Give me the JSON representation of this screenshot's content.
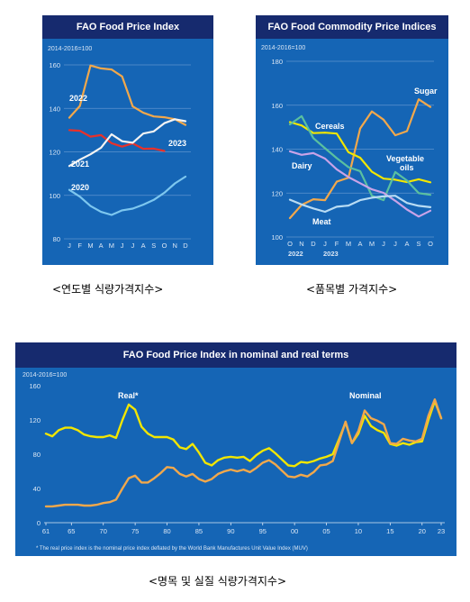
{
  "captions": {
    "annual": "<연도별 식량가격지수>",
    "commodity": "<품목별 가격지수>",
    "nominal_real": "<명목 및 실질 식량가격지수>"
  },
  "colors": {
    "panel_bg": "#1565b5",
    "title_bg": "#162a6e",
    "grid": "#5d95cf",
    "axis_text": "#dbe7f5",
    "label_text": "#ffffff",
    "orange": "#f2a84b",
    "salmon": "#f27d6b",
    "white_line": "#f4f4f4",
    "light_blue": "#7dc7ef",
    "yellow": "#f2e600",
    "teal": "#5ac0a0",
    "violet": "#c9a3e8",
    "pale_blue": "#b8dcf4",
    "red": "#e8312a"
  },
  "chart_data": [
    {
      "type": "line",
      "title": "FAO Food Price Index",
      "unit_label": "2014-2016=100",
      "x_ticks": [
        "J",
        "F",
        "M",
        "A",
        "M",
        "J",
        "J",
        "A",
        "S",
        "O",
        "N",
        "D"
      ],
      "y_ticks": [
        80,
        100,
        120,
        140,
        160
      ],
      "ylim": [
        80,
        160
      ],
      "grid": true,
      "series": [
        {
          "name": "2022",
          "color_key": "orange",
          "values": [
            135.7,
            141.1,
            159.7,
            158.4,
            157.9,
            154.7,
            140.9,
            138.0,
            136.3,
            135.9,
            135.0,
            132.4
          ]
        },
        {
          "name": "2023",
          "color_key": "red",
          "values": [
            130.0,
            129.7,
            127.0,
            127.7,
            124.0,
            122.4,
            123.9,
            121.4,
            121.5,
            120.4
          ]
        },
        {
          "name": "2021",
          "color_key": "white_line",
          "values": [
            113.5,
            116.4,
            118.9,
            121.9,
            128.1,
            124.9,
            124.2,
            128.4,
            129.4,
            133.2,
            135.0,
            134.1
          ]
        },
        {
          "name": "2020",
          "color_key": "light_blue",
          "values": [
            102.5,
            99.4,
            95.1,
            92.4,
            91.0,
            93.1,
            93.9,
            95.7,
            97.9,
            101.2,
            105.5,
            108.6
          ]
        }
      ],
      "series_labels": [
        "2022",
        "2023",
        "2021",
        "2020"
      ]
    },
    {
      "type": "line",
      "title": "FAO Food Commodity Price Indices",
      "unit_label": "2014-2016=100",
      "x_ticks": [
        "O",
        "N",
        "D",
        "J",
        "F",
        "M",
        "A",
        "M",
        "J",
        "J",
        "A",
        "S",
        "O"
      ],
      "year_ticks": [
        "2022",
        "2023"
      ],
      "y_ticks": [
        100,
        120,
        140,
        160,
        180
      ],
      "ylim": [
        100,
        180
      ],
      "grid": true,
      "series": [
        {
          "name": "Sugar",
          "color_key": "orange",
          "values": [
            108.6,
            114.6,
            117.2,
            116.8,
            125.2,
            127.0,
            149.4,
            157.2,
            153.4,
            146.3,
            148.2,
            162.7,
            159.2
          ]
        },
        {
          "name": "Cereals",
          "color_key": "yellow",
          "values": [
            152.3,
            150.8,
            147.3,
            147.5,
            147.1,
            138.6,
            136.1,
            129.7,
            126.6,
            126.1,
            125.0,
            126.3,
            124.9
          ]
        },
        {
          "name": "Vegetable oils",
          "color_key": "teal",
          "values": [
            151.3,
            155.0,
            145.0,
            140.4,
            135.9,
            131.8,
            130.0,
            118.8,
            116.8,
            129.6,
            125.7,
            120.0,
            119.2
          ]
        },
        {
          "name": "Dairy",
          "color_key": "violet",
          "values": [
            139.0,
            137.4,
            138.2,
            135.7,
            130.8,
            127.3,
            124.5,
            121.7,
            120.1,
            116.5,
            112.5,
            109.3,
            112.0
          ]
        },
        {
          "name": "Meat",
          "color_key": "pale_blue",
          "values": [
            117.0,
            114.8,
            113.0,
            111.5,
            113.8,
            114.3,
            116.8,
            117.9,
            118.5,
            118.8,
            115.5,
            114.2,
            113.6
          ]
        }
      ],
      "series_labels": [
        "Sugar",
        "Cereals",
        "Dairy",
        "Vegetable",
        "oils",
        "Meat"
      ]
    },
    {
      "type": "line",
      "title": "FAO Food Price Index in nominal and real terms",
      "unit_label": "2014-2016=100",
      "x_ticks": [
        "61",
        "65",
        "70",
        "75",
        "80",
        "85",
        "90",
        "95",
        "00",
        "05",
        "10",
        "15",
        "20",
        "23"
      ],
      "y_ticks": [
        0,
        40,
        80,
        120,
        160
      ],
      "ylim": [
        0,
        160
      ],
      "xlim": [
        1961,
        2023
      ],
      "grid": false,
      "footnote": "* The real price index is the nominal price index deflated by the World Bank Manufactures Unit Value Index (MUV)",
      "series": [
        {
          "name": "Real*",
          "color_key": "yellow",
          "x": [
            1961,
            1962,
            1963,
            1964,
            1965,
            1966,
            1967,
            1968,
            1969,
            1970,
            1971,
            1972,
            1973,
            1974,
            1975,
            1976,
            1977,
            1978,
            1979,
            1980,
            1981,
            1982,
            1983,
            1984,
            1985,
            1986,
            1987,
            1988,
            1989,
            1990,
            1991,
            1992,
            1993,
            1994,
            1995,
            1996,
            1997,
            1998,
            1999,
            2000,
            2001,
            2002,
            2003,
            2004,
            2005,
            2006,
            2007,
            2008,
            2009,
            2010,
            2011,
            2012,
            2013,
            2014,
            2015,
            2016,
            2017,
            2018,
            2019,
            2020,
            2021,
            2022,
            2023
          ],
          "values": [
            104,
            101,
            108,
            111,
            111,
            108,
            103,
            101,
            100,
            100,
            102,
            99,
            120,
            138,
            132,
            112,
            104,
            100,
            100,
            100,
            97,
            88,
            86,
            92,
            82,
            70,
            67,
            73,
            76,
            77,
            76,
            77,
            72,
            79,
            84,
            87,
            81,
            74,
            67,
            66,
            71,
            70,
            72,
            75,
            77,
            80,
            98,
            117,
            93,
            104,
            125,
            113,
            108,
            105,
            92,
            90,
            93,
            91,
            94,
            95,
            120,
            142,
            122
          ]
        },
        {
          "name": "Nominal",
          "color_key": "orange",
          "x": [
            1961,
            1962,
            1963,
            1964,
            1965,
            1966,
            1967,
            1968,
            1969,
            1970,
            1971,
            1972,
            1973,
            1974,
            1975,
            1976,
            1977,
            1978,
            1979,
            1980,
            1981,
            1982,
            1983,
            1984,
            1985,
            1986,
            1987,
            1988,
            1989,
            1990,
            1991,
            1992,
            1993,
            1994,
            1995,
            1996,
            1997,
            1998,
            1999,
            2000,
            2001,
            2002,
            2003,
            2004,
            2005,
            2006,
            2007,
            2008,
            2009,
            2010,
            2011,
            2012,
            2013,
            2014,
            2015,
            2016,
            2017,
            2018,
            2019,
            2020,
            2021,
            2022,
            2023
          ],
          "values": [
            19,
            19,
            20,
            21,
            21,
            21,
            20,
            20,
            21,
            23,
            24,
            27,
            40,
            52,
            55,
            47,
            47,
            52,
            58,
            65,
            64,
            57,
            54,
            57,
            51,
            48,
            51,
            57,
            60,
            62,
            60,
            62,
            59,
            64,
            70,
            73,
            68,
            61,
            54,
            53,
            56,
            54,
            59,
            67,
            68,
            72,
            95,
            118,
            93,
            107,
            131,
            122,
            119,
            115,
            93,
            92,
            98,
            96,
            95,
            98,
            125,
            144,
            122
          ]
        }
      ],
      "series_labels": [
        "Real*",
        "Nominal"
      ]
    }
  ]
}
